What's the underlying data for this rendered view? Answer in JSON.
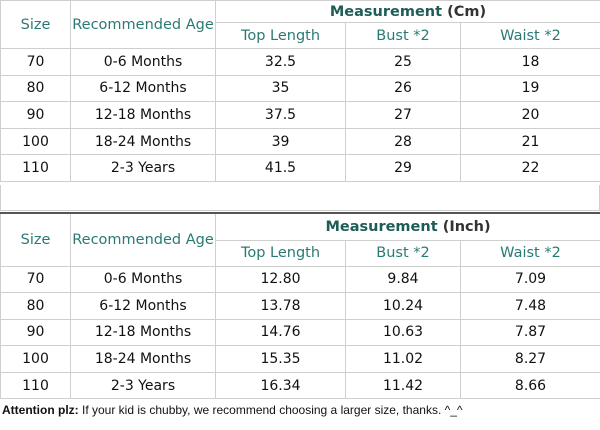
{
  "tables": [
    {
      "headers": [
        "Size",
        "Recommended Age"
      ],
      "group_title": "Measurement",
      "unit": "(Cm)",
      "subheaders": [
        "Top Length",
        "Bust *2",
        "Waist *2"
      ],
      "rows": [
        [
          "70",
          "0-6 Months",
          "32.5",
          "25",
          "18"
        ],
        [
          "80",
          "6-12 Months",
          "35",
          "26",
          "19"
        ],
        [
          "90",
          "12-18 Months",
          "37.5",
          "27",
          "20"
        ],
        [
          "100",
          "18-24 Months",
          "39",
          "28",
          "21"
        ],
        [
          "110",
          "2-3 Years",
          "41.5",
          "29",
          "22"
        ]
      ]
    },
    {
      "headers": [
        "Size",
        "Recommended Age"
      ],
      "group_title": "Measurement",
      "unit": "(Inch)",
      "subheaders": [
        "Top Length",
        "Bust *2",
        "Waist *2"
      ],
      "rows": [
        [
          "70",
          "0-6 Months",
          "12.80",
          "9.84",
          "7.09"
        ],
        [
          "80",
          "6-12 Months",
          "13.78",
          "10.24",
          "7.48"
        ],
        [
          "90",
          "12-18 Months",
          "14.76",
          "10.63",
          "7.87"
        ],
        [
          "100",
          "18-24 Months",
          "15.35",
          "11.02",
          "8.27"
        ],
        [
          "110",
          "2-3 Years",
          "16.34",
          "11.42",
          "8.66"
        ]
      ]
    }
  ],
  "note": {
    "label": "Attention plz:",
    "text": "If your kid is chubby, we recommend choosing a larger size, thanks. ^_^"
  }
}
